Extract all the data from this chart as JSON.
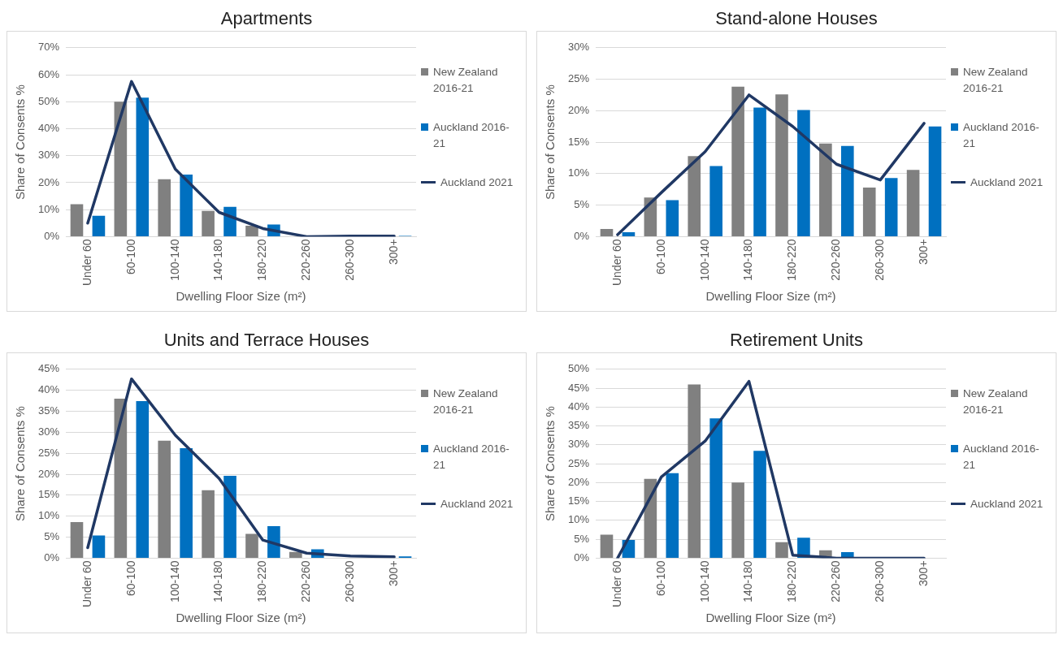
{
  "chart_data": [
    {
      "type": "bar",
      "title": "Apartments",
      "categories": [
        "Under 60",
        "60-100",
        "100-140",
        "140-180",
        "180-220",
        "220-260",
        "260-300",
        "300+"
      ],
      "xlabel": "Dwelling Floor Size (m²)",
      "ylabel": "Share of Consents %",
      "ylim": [
        0,
        70
      ],
      "yticks": [
        {
          "value": 0,
          "label": "0%"
        },
        {
          "value": 10,
          "label": "10%"
        },
        {
          "value": 20,
          "label": "20%"
        },
        {
          "value": 30,
          "label": "30%"
        },
        {
          "value": 40,
          "label": "40%"
        },
        {
          "value": 50,
          "label": "50%"
        },
        {
          "value": 60,
          "label": "60%"
        },
        {
          "value": 70,
          "label": "70%"
        }
      ],
      "grid": "y",
      "legend": "right",
      "marker": "none",
      "series": [
        {
          "name": "New Zealand 2016-21",
          "color": "#808080",
          "values": [
            12,
            50,
            21.3,
            9.5,
            4,
            0,
            0,
            0
          ]
        },
        {
          "name": "Auckland 2016-21",
          "color": "#0070c0",
          "values": [
            7.7,
            51.5,
            23,
            11,
            4.5,
            0,
            0,
            0.3
          ]
        },
        {
          "name": "Auckland 2021",
          "type": "line",
          "color": "#203864",
          "values": [
            5,
            57.5,
            25,
            9,
            3,
            0,
            0.2,
            0.2
          ]
        }
      ]
    },
    {
      "type": "bar",
      "title": "Stand-alone Houses",
      "categories": [
        "Under 60",
        "60-100",
        "100-140",
        "140-180",
        "180-220",
        "220-260",
        "260-300",
        "300+"
      ],
      "xlabel": "Dwelling Floor Size (m²)",
      "ylabel": "Share of Consents %",
      "ylim": [
        0,
        30
      ],
      "yticks": [
        {
          "value": 0,
          "label": "0%"
        },
        {
          "value": 5,
          "label": "5%"
        },
        {
          "value": 10,
          "label": "10%"
        },
        {
          "value": 15,
          "label": "15%"
        },
        {
          "value": 20,
          "label": "20%"
        },
        {
          "value": 25,
          "label": "25%"
        },
        {
          "value": 30,
          "label": "30%"
        }
      ],
      "grid": "y",
      "legend": "right",
      "marker": "none",
      "series": [
        {
          "name": "New Zealand 2016-21",
          "color": "#808080",
          "values": [
            1.2,
            6.2,
            12.8,
            23.8,
            22.6,
            14.8,
            7.8,
            10.6
          ]
        },
        {
          "name": "Auckland 2016-21",
          "color": "#0070c0",
          "values": [
            0.7,
            5.8,
            11.2,
            20.5,
            20.1,
            14.4,
            9.3,
            17.5
          ]
        },
        {
          "name": "Auckland 2021",
          "type": "line",
          "color": "#203864",
          "values": [
            0.3,
            7,
            13.5,
            22.5,
            17.5,
            11.5,
            9,
            18
          ]
        }
      ]
    },
    {
      "type": "bar",
      "title": "Units and Terrace Houses",
      "categories": [
        "Under 60",
        "60-100",
        "100-140",
        "140-180",
        "180-220",
        "220-260",
        "260-300",
        "300+"
      ],
      "xlabel": "Dwelling Floor Size (m²)",
      "ylabel": "Share of Consents %",
      "ylim": [
        0,
        45
      ],
      "yticks": [
        {
          "value": 0,
          "label": "0%"
        },
        {
          "value": 5,
          "label": "5%"
        },
        {
          "value": 10,
          "label": "10%"
        },
        {
          "value": 15,
          "label": "15%"
        },
        {
          "value": 20,
          "label": "20%"
        },
        {
          "value": 25,
          "label": "25%"
        },
        {
          "value": 30,
          "label": "30%"
        },
        {
          "value": 35,
          "label": "35%"
        },
        {
          "value": 40,
          "label": "40%"
        },
        {
          "value": 45,
          "label": "45%"
        }
      ],
      "grid": "y",
      "legend": "right",
      "marker": "none",
      "series": [
        {
          "name": "New Zealand 2016-21",
          "color": "#808080",
          "values": [
            8.6,
            38,
            28,
            16.2,
            5.8,
            1.5,
            0,
            0
          ]
        },
        {
          "name": "Auckland 2016-21",
          "color": "#0070c0",
          "values": [
            5.4,
            37.4,
            26.2,
            19.6,
            7.6,
            2.1,
            0,
            0.4
          ]
        },
        {
          "name": "Auckland 2021",
          "type": "line",
          "color": "#203864",
          "values": [
            2.5,
            42.7,
            29.3,
            19,
            4.3,
            1.2,
            0.5,
            0.3
          ]
        }
      ]
    },
    {
      "type": "bar",
      "title": "Retirement Units",
      "categories": [
        "Under 60",
        "60-100",
        "100-140",
        "140-180",
        "180-220",
        "220-260",
        "260-300",
        "300+"
      ],
      "xlabel": "Dwelling Floor Size (m²)",
      "ylabel": "Share of Consents %",
      "ylim": [
        0,
        50
      ],
      "yticks": [
        {
          "value": 0,
          "label": "0%"
        },
        {
          "value": 5,
          "label": "5%"
        },
        {
          "value": 10,
          "label": "10%"
        },
        {
          "value": 15,
          "label": "15%"
        },
        {
          "value": 20,
          "label": "20%"
        },
        {
          "value": 25,
          "label": "25%"
        },
        {
          "value": 30,
          "label": "30%"
        },
        {
          "value": 35,
          "label": "35%"
        },
        {
          "value": 40,
          "label": "40%"
        },
        {
          "value": 45,
          "label": "45%"
        },
        {
          "value": 50,
          "label": "50%"
        }
      ],
      "grid": "y",
      "legend": "right",
      "marker": "none",
      "series": [
        {
          "name": "New Zealand 2016-21",
          "color": "#808080",
          "values": [
            6.2,
            21,
            46,
            20,
            4.2,
            2.1,
            0,
            0
          ]
        },
        {
          "name": "Auckland 2016-21",
          "color": "#0070c0",
          "values": [
            4.8,
            22.5,
            37,
            28.4,
            5.4,
            1.6,
            0,
            0
          ]
        },
        {
          "name": "Auckland 2021",
          "type": "line",
          "color": "#203864",
          "values": [
            0,
            21.5,
            31,
            46.8,
            0.8,
            0,
            0,
            0
          ]
        }
      ]
    }
  ]
}
